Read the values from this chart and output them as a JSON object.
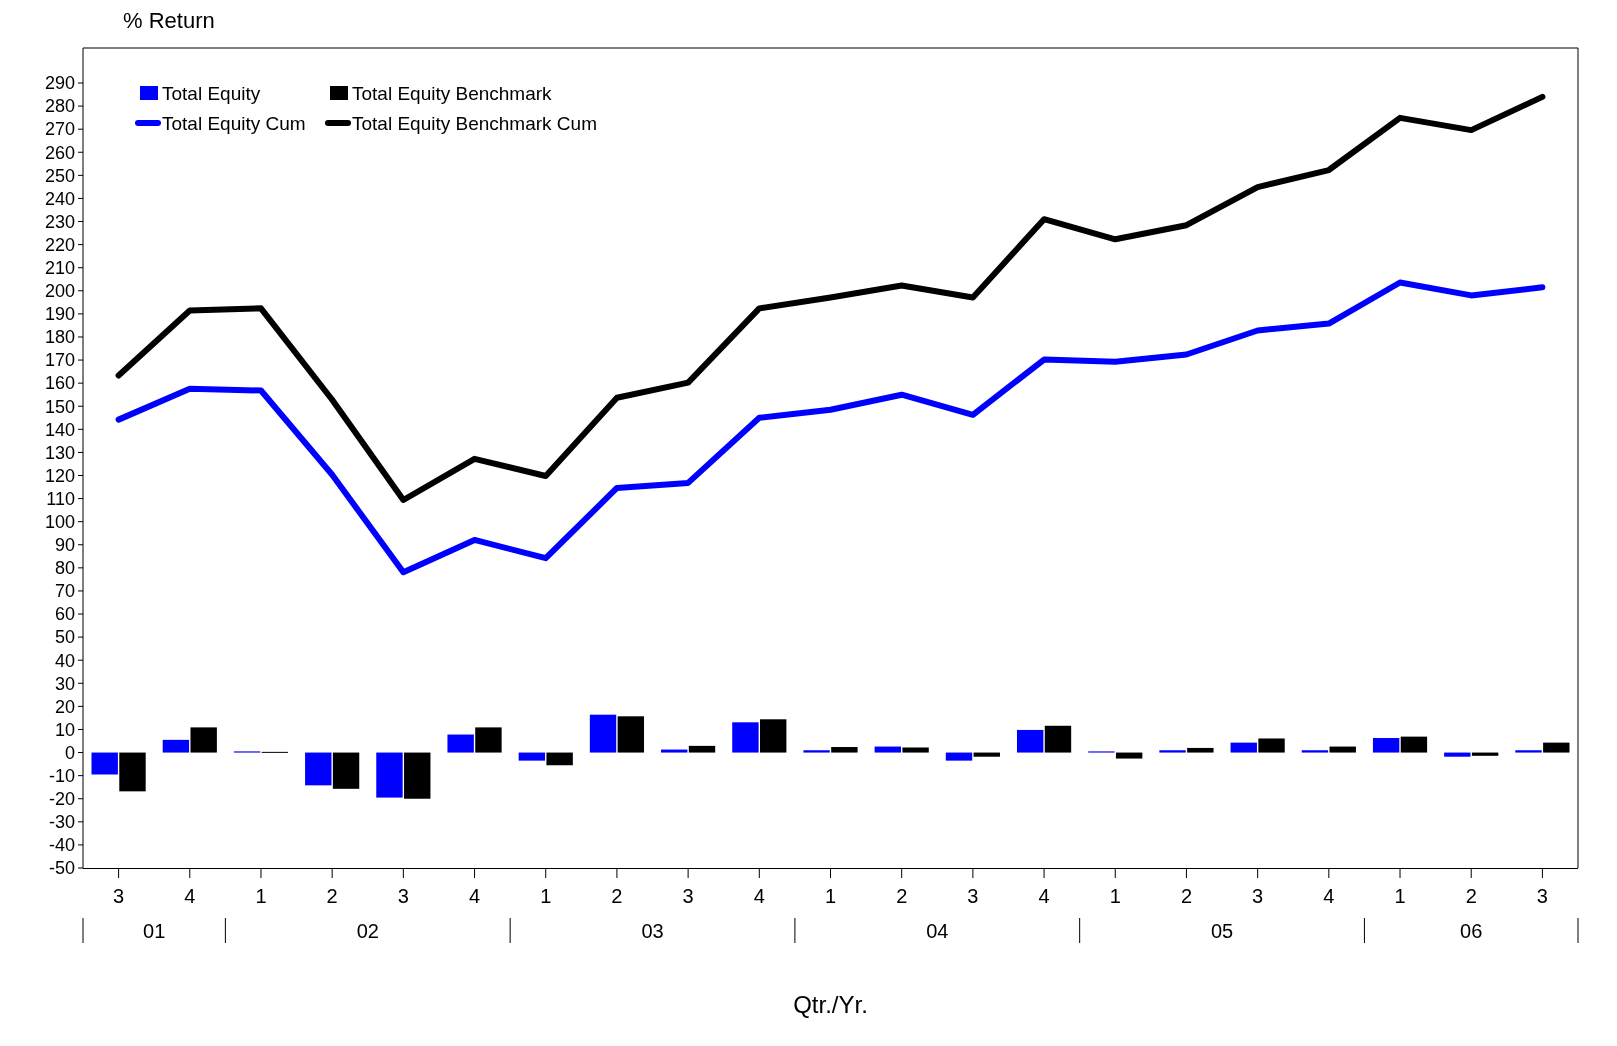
{
  "chart_data": {
    "type": "bar",
    "ylabel": "% Return",
    "xlabel": "Qtr./Yr.",
    "categories": [
      "3",
      "4",
      "1",
      "2",
      "3",
      "4",
      "1",
      "2",
      "3",
      "4",
      "1",
      "2",
      "3",
      "4",
      "1",
      "2",
      "3",
      "4",
      "1",
      "2",
      "3"
    ],
    "annotations": [
      "01",
      "02",
      "03",
      "04",
      "05",
      "06"
    ],
    "series": [
      {
        "name": "Total Equity",
        "color": "#0000ff",
        "values": [
          -9.5,
          5.5,
          0.5,
          -14.2,
          -19.5,
          7.8,
          -3.5,
          16.4,
          1.3,
          13.1,
          1,
          2.6,
          -3.5,
          9.8,
          0.5,
          1,
          4.3,
          1,
          6.3,
          -1.8,
          1
        ]
      },
      {
        "name": "Total Equity Benchmark",
        "color": "#000000",
        "values": [
          -16.8,
          10.9,
          0.3,
          -15.7,
          -20,
          10.9,
          -5.5,
          15.7,
          2.9,
          14.4,
          2.4,
          2.2,
          -1.8,
          11.6,
          -2.6,
          2,
          6.1,
          2.6,
          6.9,
          -1.4,
          4.3
        ]
      },
      {
        "name": "Total Equity Cum",
        "type": "line",
        "color": "#0000ff",
        "values": [
          144.2,
          157.6,
          156.8,
          120.3,
          78.1,
          92.1,
          84.2,
          114.6,
          116.8,
          145,
          148.5,
          155,
          146.3,
          170.2,
          169.3,
          172.4,
          182.8,
          185.8,
          203.6,
          198,
          201.5
        ]
      },
      {
        "name": "Total Equity Benchmark Cum",
        "type": "line",
        "color": "#000000",
        "values": [
          163.3,
          191.5,
          192.4,
          152.8,
          109.4,
          127.2,
          119.8,
          153.7,
          160.2,
          192.4,
          197.1,
          202.3,
          197.1,
          231,
          222.3,
          228.4,
          244.9,
          252.3,
          274.9,
          269.6,
          284
        ]
      }
    ],
    "ylim": [
      -50,
      290
    ],
    "yticks": [
      -50,
      -40,
      -30,
      -20,
      -10,
      0,
      10,
      20,
      30,
      40,
      50,
      60,
      70,
      80,
      90,
      100,
      110,
      120,
      130,
      140,
      150,
      160,
      170,
      180,
      190,
      200,
      210,
      220,
      230,
      240,
      250,
      260,
      270,
      280,
      290
    ],
    "grid": false,
    "legend": "top left"
  }
}
